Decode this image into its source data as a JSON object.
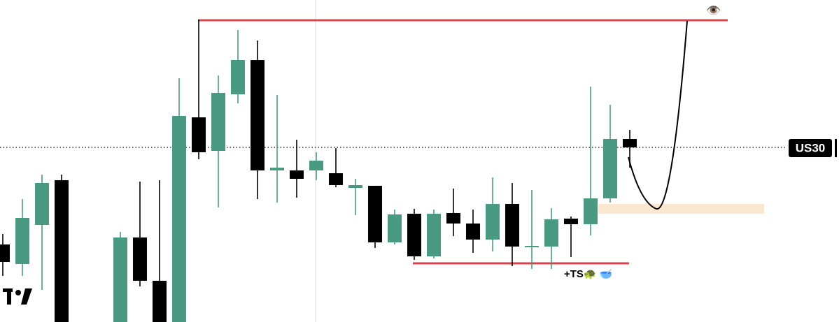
{
  "chart_data": {
    "type": "candlestick",
    "symbol": "US30",
    "annotations": [
      "👁️",
      "+TS🐢 🥣"
    ],
    "categories": [
      null,
      null,
      null,
      null,
      null,
      null,
      null,
      null,
      null,
      null,
      null,
      null,
      null,
      null,
      null,
      null,
      null,
      null,
      null,
      null,
      null,
      null,
      null,
      null,
      null,
      null,
      null,
      null,
      null,
      null,
      null,
      null,
      null
    ],
    "open": [
      111,
      83,
      139,
      203,
      null,
      null,
      0,
      121,
      59,
      0,
      293,
      245,
      326,
      375,
      217,
      217,
      217,
      213,
      192,
      195,
      114,
      155,
      94,
      156,
      141,
      118,
      169,
      107,
      108,
      148,
      140,
      177,
      262
    ],
    "high": [
      126,
      176,
      211,
      211,
      null,
      null,
      129,
      201,
      203,
      349,
      433,
      353,
      418,
      403,
      325,
      261,
      243,
      249,
      205,
      195,
      161,
      162,
      161,
      191,
      161,
      207,
      199,
      189,
      163,
      151,
      337,
      311,
      275
    ],
    "low": [
      66,
      66,
      46,
      0,
      null,
      null,
      0,
      51,
      0,
      0,
      233,
      164,
      313,
      176,
      171,
      178,
      203,
      193,
      153,
      106,
      111,
      89,
      91,
      123,
      99,
      101,
      80,
      76,
      76,
      93,
      124,
      171,
      221
    ],
    "close": [
      86,
      149,
      199,
      0,
      null,
      null,
      121,
      59,
      0,
      295,
      243,
      328,
      375,
      217,
      221,
      205,
      231,
      196,
      196,
      114,
      154,
      94,
      155,
      141,
      118,
      169,
      108,
      109,
      147,
      140,
      177,
      262,
      250
    ],
    "up_color": "#4a9a82",
    "down_color": "#000000",
    "ylim": [
      0,
      461
    ],
    "price_line": 250,
    "resistance": 432,
    "support": 84,
    "level_color": "#d9434b",
    "zone": [
      155,
      169
    ],
    "zone_color": "#fbe6cf"
  }
}
